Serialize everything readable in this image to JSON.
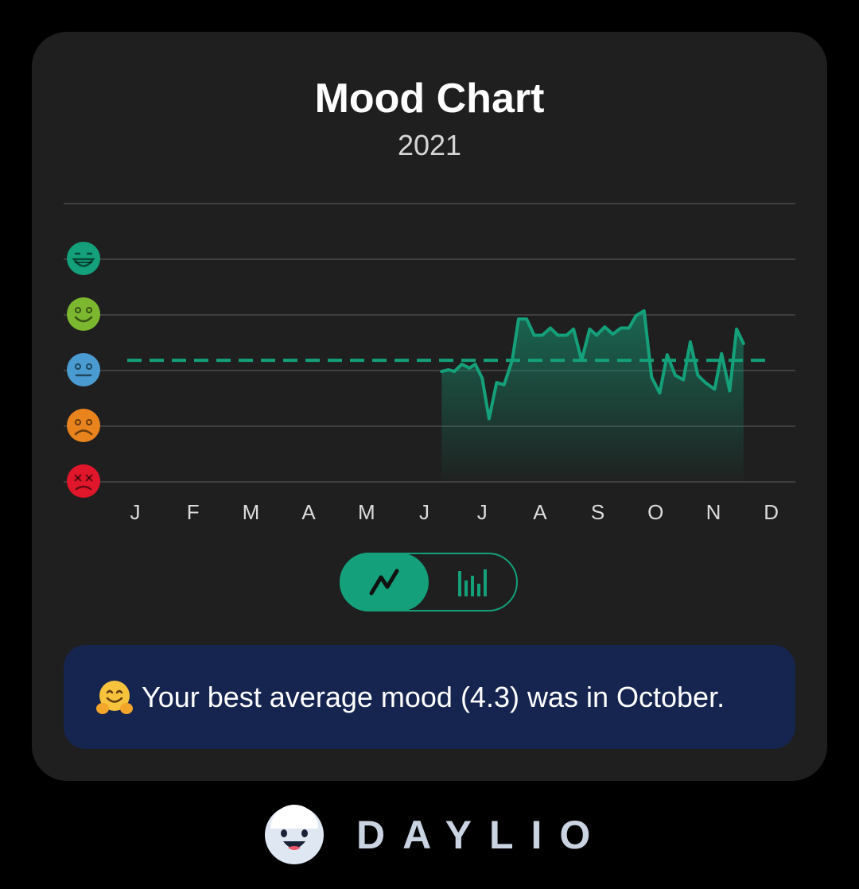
{
  "card": {
    "title": "Mood Chart",
    "subtitle": "2021"
  },
  "chart_data": {
    "type": "area",
    "title": "Mood Chart",
    "subtitle": "2021",
    "x_tick_labels": [
      "J",
      "F",
      "M",
      "A",
      "M",
      "J",
      "J",
      "A",
      "S",
      "O",
      "N",
      "D"
    ],
    "y_levels": [
      {
        "value": 5,
        "mood": "rad",
        "icon": "rad-face-icon",
        "color": "#13a07a"
      },
      {
        "value": 4,
        "mood": "good",
        "icon": "good-face-icon",
        "color": "#7cb82f"
      },
      {
        "value": 3,
        "mood": "meh",
        "icon": "meh-face-icon",
        "color": "#4a9bd1"
      },
      {
        "value": 2,
        "mood": "bad",
        "icon": "bad-face-icon",
        "color": "#e8831e"
      },
      {
        "value": 1,
        "mood": "awful",
        "icon": "awful-face-icon",
        "color": "#e0162b"
      }
    ],
    "ylim": [
      1,
      5
    ],
    "xlim": [
      0,
      11
    ],
    "average": 3.17,
    "line_color": "#14a07a",
    "grid": true,
    "points": [
      {
        "x": 5.3,
        "y": 2.97
      },
      {
        "x": 5.42,
        "y": 3.0
      },
      {
        "x": 5.52,
        "y": 2.97
      },
      {
        "x": 5.65,
        "y": 3.1
      },
      {
        "x": 5.78,
        "y": 3.03
      },
      {
        "x": 5.88,
        "y": 3.1
      },
      {
        "x": 6.0,
        "y": 2.85
      },
      {
        "x": 6.12,
        "y": 2.12
      },
      {
        "x": 6.25,
        "y": 2.77
      },
      {
        "x": 6.38,
        "y": 2.73
      },
      {
        "x": 6.52,
        "y": 3.17
      },
      {
        "x": 6.63,
        "y": 3.91
      },
      {
        "x": 6.77,
        "y": 3.91
      },
      {
        "x": 6.9,
        "y": 3.62
      },
      {
        "x": 7.04,
        "y": 3.62
      },
      {
        "x": 7.18,
        "y": 3.75
      },
      {
        "x": 7.31,
        "y": 3.62
      },
      {
        "x": 7.46,
        "y": 3.62
      },
      {
        "x": 7.58,
        "y": 3.73
      },
      {
        "x": 7.72,
        "y": 3.17
      },
      {
        "x": 7.86,
        "y": 3.73
      },
      {
        "x": 7.98,
        "y": 3.62
      },
      {
        "x": 8.12,
        "y": 3.77
      },
      {
        "x": 8.26,
        "y": 3.64
      },
      {
        "x": 8.4,
        "y": 3.75
      },
      {
        "x": 8.54,
        "y": 3.75
      },
      {
        "x": 8.66,
        "y": 3.97
      },
      {
        "x": 8.8,
        "y": 4.06
      },
      {
        "x": 8.93,
        "y": 2.87
      },
      {
        "x": 9.07,
        "y": 2.58
      },
      {
        "x": 9.2,
        "y": 3.27
      },
      {
        "x": 9.34,
        "y": 2.9
      },
      {
        "x": 9.48,
        "y": 2.82
      },
      {
        "x": 9.6,
        "y": 3.5
      },
      {
        "x": 9.73,
        "y": 2.9
      },
      {
        "x": 9.86,
        "y": 2.77
      },
      {
        "x": 10.02,
        "y": 2.65
      },
      {
        "x": 10.14,
        "y": 3.29
      },
      {
        "x": 10.28,
        "y": 2.62
      },
      {
        "x": 10.4,
        "y": 3.73
      },
      {
        "x": 10.52,
        "y": 3.47
      }
    ]
  },
  "toggle": {
    "selected": "line",
    "options": [
      {
        "name": "line",
        "icon": "line-chart-icon"
      },
      {
        "name": "bar",
        "icon": "bar-chart-icon"
      }
    ]
  },
  "insight": {
    "emoji": "hugging-face-icon",
    "text": "Your best average mood (4.3) was in October."
  },
  "brand": {
    "name": "DAYLIO",
    "logo": "daylio-logo-icon"
  }
}
